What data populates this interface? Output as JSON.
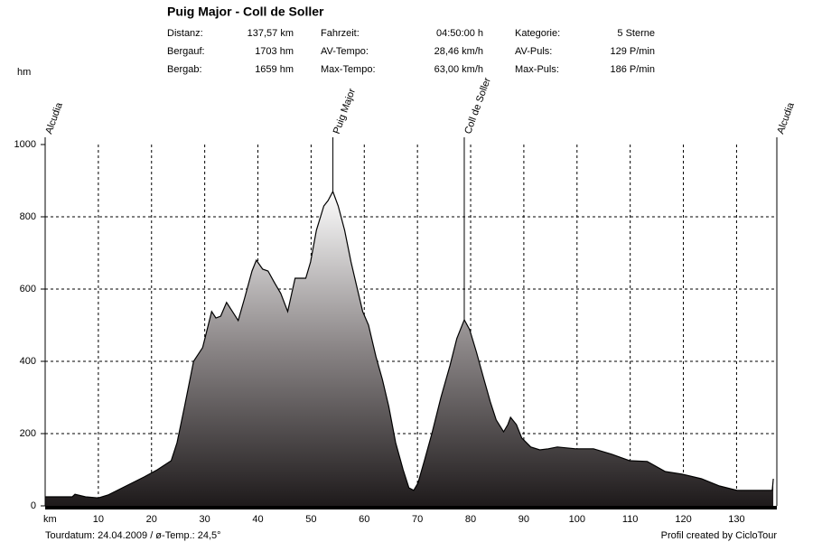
{
  "header": {
    "title": "Puig Major - Coll de Soller",
    "stats": [
      [
        [
          "Distanz:",
          "137,57 km"
        ],
        [
          "Fahrzeit:",
          "04:50:00 h"
        ],
        [
          "Kategorie:",
          "5 Sterne"
        ]
      ],
      [
        [
          "Bergauf:",
          "1703 hm"
        ],
        [
          "AV-Tempo:",
          "28,46 km/h"
        ],
        [
          "AV-Puls:",
          "129 P/min"
        ]
      ],
      [
        [
          "Bergab:",
          "1659 hm"
        ],
        [
          "Max-Tempo:",
          "63,00 km/h"
        ],
        [
          "Max-Puls:",
          "186 P/min"
        ]
      ]
    ]
  },
  "chart_data": {
    "type": "area",
    "ylabel": "hm",
    "xlabel": "km",
    "x": [
      0,
      5.1,
      5.6,
      7.6,
      10.0,
      11.8,
      15.2,
      18.6,
      21.1,
      23.7,
      24.8,
      26.2,
      27.9,
      29.6,
      31.3,
      32.1,
      33.0,
      34.1,
      35.2,
      36.3,
      37.5,
      38.9,
      39.7,
      40.9,
      41.9,
      43.1,
      44.3,
      45.6,
      47.0,
      49.0,
      49.9,
      51.0,
      52.4,
      53.2,
      54.1,
      55.1,
      56.3,
      57.5,
      58.5,
      59.7,
      60.8,
      62.2,
      63.4,
      64.6,
      65.9,
      67.3,
      68.4,
      69.3,
      70.1,
      71.3,
      72.7,
      74.4,
      76.1,
      77.4,
      78.8,
      79.8,
      81.1,
      82.5,
      83.7,
      84.8,
      86.2,
      87.0,
      87.5,
      88.6,
      89.6,
      91.3,
      93.0,
      94.6,
      96.3,
      99.7,
      103.1,
      106.5,
      109.9,
      113.2,
      116.6,
      119.7,
      123.4,
      126.8,
      130.1,
      136.7,
      136.9
    ],
    "values": [
      25,
      25,
      32,
      25,
      22,
      30,
      55,
      80,
      100,
      125,
      175,
      275,
      400,
      438,
      538,
      520,
      525,
      563,
      538,
      513,
      575,
      650,
      680,
      655,
      650,
      618,
      588,
      538,
      630,
      630,
      675,
      763,
      830,
      845,
      870,
      830,
      763,
      675,
      613,
      538,
      500,
      413,
      350,
      275,
      175,
      100,
      50,
      43,
      63,
      125,
      200,
      300,
      388,
      463,
      515,
      488,
      425,
      350,
      288,
      238,
      205,
      225,
      245,
      225,
      188,
      163,
      155,
      158,
      163,
      158,
      158,
      143,
      125,
      123,
      95,
      88,
      75,
      55,
      43,
      43,
      75
    ],
    "xlim": [
      0,
      137.57
    ],
    "ylim": [
      0,
      1000
    ],
    "xticks": [
      10,
      20,
      30,
      40,
      50,
      60,
      70,
      80,
      90,
      100,
      110,
      120,
      130
    ],
    "yticks": [
      0,
      200,
      400,
      600,
      800,
      1000
    ],
    "grid": true,
    "markers": [
      {
        "label": "Alcudia",
        "km": 0
      },
      {
        "label": "Puig Major",
        "km": 54.1
      },
      {
        "label": "Coll de Soller",
        "km": 78.8
      },
      {
        "label": "Alcudia",
        "km": 137.57
      }
    ]
  },
  "footer": {
    "left": "Tourdatum: 24.04.2009  /  ø-Temp.: 24,5°",
    "right": "Profil created by CicloTour"
  }
}
